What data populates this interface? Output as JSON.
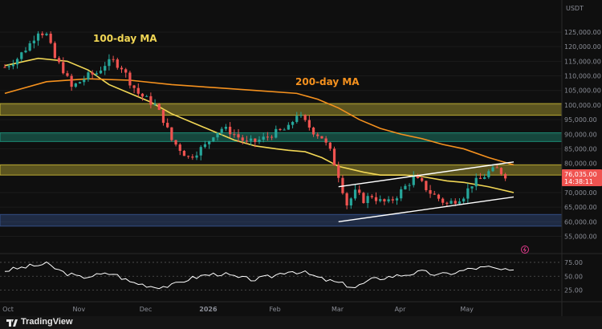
{
  "currency": "USDT",
  "chart_data": {
    "type": "candlestick",
    "symbol_quote": "USDT",
    "x_labels": [
      "Oct",
      "Nov",
      "Dec",
      "2026",
      "Feb",
      "Mar",
      "Apr",
      "May"
    ],
    "price_ticks": [
      "125,000.00",
      "120,000.00",
      "115,000.00",
      "110,000.00",
      "105,000.00",
      "100,000.00",
      "95,000.00",
      "90,000.00",
      "85,000.00",
      "80,000.00",
      "70,000.00",
      "65,000.00",
      "60,000.00",
      "55,000.00"
    ],
    "price_ticks_values": [
      125000,
      120000,
      115000,
      110000,
      105000,
      100000,
      95000,
      90000,
      85000,
      80000,
      70000,
      65000,
      60000,
      55000
    ],
    "ylim": [
      53500,
      130500
    ],
    "last_price": "76,035.00",
    "last_price_value": 76035,
    "countdown": "14:38:11",
    "ma_labels": {
      "ma100": "100-day MA",
      "ma200": "200-day MA"
    },
    "ma_colors": {
      "ma100": "#f2d755",
      "ma200": "#f5911e"
    },
    "zones": [
      {
        "type": "resistance",
        "low": 96500,
        "high": 100500,
        "color": "#d8c53a"
      },
      {
        "type": "resistance",
        "low": 87500,
        "high": 90500,
        "color": "#1fa38a"
      },
      {
        "type": "resistance",
        "low": 76000,
        "high": 79500,
        "color": "#d8c53a"
      },
      {
        "type": "support",
        "low": 58500,
        "high": 62500,
        "color": "#3a5a9a"
      }
    ],
    "candle_anchors": [
      [
        0,
        113000
      ],
      [
        3,
        116000
      ],
      [
        6,
        121000
      ],
      [
        8,
        125500
      ],
      [
        10,
        124000
      ],
      [
        12,
        116000
      ],
      [
        14,
        112000
      ],
      [
        16,
        106000
      ],
      [
        18,
        108000
      ],
      [
        20,
        110000
      ],
      [
        22,
        111000
      ],
      [
        24,
        114000
      ],
      [
        26,
        115000
      ],
      [
        28,
        113000
      ],
      [
        30,
        108000
      ],
      [
        32,
        104000
      ],
      [
        34,
        102000
      ],
      [
        36,
        100000
      ],
      [
        38,
        95000
      ],
      [
        40,
        88000
      ],
      [
        42,
        85000
      ],
      [
        44,
        82000
      ],
      [
        46,
        84000
      ],
      [
        48,
        86000
      ],
      [
        50,
        90000
      ],
      [
        52,
        92000
      ],
      [
        54,
        91000
      ],
      [
        56,
        89000
      ],
      [
        58,
        87000
      ],
      [
        60,
        87500
      ],
      [
        62,
        88500
      ],
      [
        64,
        90000
      ],
      [
        66,
        91000
      ],
      [
        68,
        92000
      ],
      [
        70,
        97000
      ],
      [
        72,
        94000
      ],
      [
        74,
        91000
      ],
      [
        76,
        89000
      ],
      [
        78,
        84000
      ],
      [
        80,
        76000
      ],
      [
        82,
        66000
      ],
      [
        84,
        70000
      ],
      [
        86,
        67500
      ],
      [
        88,
        69000
      ],
      [
        90,
        67000
      ],
      [
        92,
        66500
      ],
      [
        94,
        69000
      ],
      [
        96,
        72000
      ],
      [
        98,
        75000
      ],
      [
        100,
        73000
      ],
      [
        102,
        70000
      ],
      [
        104,
        68000
      ],
      [
        106,
        66000
      ],
      [
        108,
        67500
      ],
      [
        110,
        69000
      ],
      [
        112,
        73000
      ],
      [
        114,
        74500
      ],
      [
        116,
        77000
      ],
      [
        118,
        78000
      ],
      [
        120,
        76000
      ]
    ],
    "ma100_points": [
      [
        0,
        113500
      ],
      [
        8,
        116000
      ],
      [
        15,
        115000
      ],
      [
        20,
        112000
      ],
      [
        25,
        107000
      ],
      [
        30,
        104000
      ],
      [
        35,
        101000
      ],
      [
        40,
        97000
      ],
      [
        45,
        94000
      ],
      [
        50,
        91000
      ],
      [
        55,
        88000
      ],
      [
        60,
        86000
      ],
      [
        65,
        85000
      ],
      [
        68,
        84500
      ],
      [
        72,
        84000
      ],
      [
        76,
        82000
      ],
      [
        80,
        79000
      ],
      [
        86,
        77000
      ],
      [
        90,
        76000
      ],
      [
        96,
        76000
      ],
      [
        100,
        75500
      ],
      [
        106,
        74000
      ],
      [
        110,
        73500
      ],
      [
        116,
        72000
      ],
      [
        122,
        70000
      ]
    ],
    "ma200_points": [
      [
        0,
        104000
      ],
      [
        10,
        108000
      ],
      [
        20,
        109000
      ],
      [
        30,
        108500
      ],
      [
        40,
        107000
      ],
      [
        50,
        106000
      ],
      [
        60,
        105000
      ],
      [
        70,
        104000
      ],
      [
        75,
        102000
      ],
      [
        80,
        99000
      ],
      [
        85,
        95000
      ],
      [
        90,
        92000
      ],
      [
        95,
        90000
      ],
      [
        100,
        88500
      ],
      [
        105,
        86500
      ],
      [
        110,
        85000
      ],
      [
        116,
        82000
      ],
      [
        122,
        79500
      ]
    ],
    "channel": {
      "upper": [
        [
          80,
          72000
        ],
        [
          122,
          80500
        ]
      ],
      "lower": [
        [
          80,
          60000
        ],
        [
          122,
          68500
        ]
      ]
    },
    "rsi": {
      "ticks": [
        "75.00",
        "50.00",
        "25.00"
      ],
      "ticks_values": [
        75,
        50,
        25
      ],
      "points": [
        [
          0,
          60
        ],
        [
          6,
          68
        ],
        [
          10,
          72
        ],
        [
          14,
          57
        ],
        [
          18,
          48
        ],
        [
          22,
          52
        ],
        [
          26,
          55
        ],
        [
          30,
          40
        ],
        [
          36,
          31
        ],
        [
          40,
          33
        ],
        [
          44,
          45
        ],
        [
          48,
          52
        ],
        [
          52,
          55
        ],
        [
          56,
          47
        ],
        [
          60,
          44
        ],
        [
          64,
          50
        ],
        [
          68,
          60
        ],
        [
          72,
          56
        ],
        [
          76,
          45
        ],
        [
          80,
          38
        ],
        [
          84,
          30
        ],
        [
          88,
          44
        ],
        [
          92,
          49
        ],
        [
          96,
          53
        ],
        [
          100,
          58
        ],
        [
          104,
          52
        ],
        [
          108,
          57
        ],
        [
          112,
          64
        ],
        [
          116,
          66
        ],
        [
          120,
          60
        ],
        [
          122,
          58
        ]
      ]
    }
  },
  "brand": {
    "name": "TradingView"
  }
}
